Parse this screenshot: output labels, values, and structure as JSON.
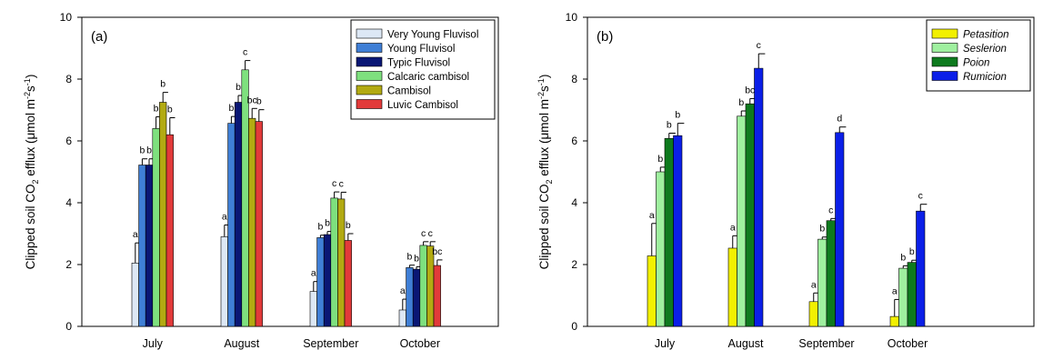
{
  "chart_data": [
    {
      "type": "bar",
      "panel_label": "(a)",
      "ylabel_prefix": "Clipped soil CO",
      "ylabel_sub": "2",
      "ylabel_mid": " efflux (μmol m",
      "ylabel_sup1": "-2",
      "ylabel_s": "s",
      "ylabel_sup2": "-1",
      "ylabel_end": ")",
      "ylim": [
        0,
        10
      ],
      "yticks": [
        "0",
        "2",
        "4",
        "6",
        "8",
        "10"
      ],
      "categories": [
        "July",
        "August",
        "September",
        "October"
      ],
      "legend_position": "top-right",
      "series": [
        {
          "name": "Very Young Fluvisol",
          "color": "#dde8f5",
          "italic": false,
          "values": [
            2.05,
            2.9,
            1.13,
            0.53
          ],
          "errors": [
            0.65,
            0.38,
            0.32,
            0.35
          ],
          "letters": [
            "a",
            "a",
            "a",
            "a"
          ]
        },
        {
          "name": "Young Fluvisol",
          "color": "#3f7fd6",
          "italic": false,
          "values": [
            5.22,
            6.57,
            2.87,
            1.9
          ],
          "errors": [
            0.2,
            0.22,
            0.08,
            0.08
          ],
          "letters": [
            "b",
            "b",
            "b",
            "b"
          ]
        },
        {
          "name": "Typic Fluvisol",
          "color": "#0a1775",
          "italic": false,
          "values": [
            5.22,
            7.25,
            2.97,
            1.85
          ],
          "errors": [
            0.2,
            0.22,
            0.1,
            0.08
          ],
          "letters": [
            "b",
            "b",
            "b",
            "b"
          ]
        },
        {
          "name": "Calcaric cambisol",
          "color": "#7ee07e",
          "italic": false,
          "values": [
            6.4,
            8.3,
            4.15,
            2.62
          ],
          "errors": [
            0.38,
            0.3,
            0.2,
            0.12
          ],
          "letters": [
            "b",
            "c",
            "c",
            "c"
          ]
        },
        {
          "name": "Cambisol",
          "color": "#b2aa12",
          "italic": false,
          "values": [
            7.25,
            6.73,
            4.12,
            2.6
          ],
          "errors": [
            0.32,
            0.32,
            0.22,
            0.14
          ],
          "letters": [
            "b",
            "bc",
            "c",
            "c"
          ]
        },
        {
          "name": "Luvic Cambisol",
          "color": "#e23a3a",
          "italic": false,
          "values": [
            6.2,
            6.63,
            2.78,
            1.97
          ],
          "errors": [
            0.55,
            0.38,
            0.22,
            0.18
          ],
          "letters": [
            "b",
            "b",
            "b",
            "bc"
          ]
        }
      ]
    },
    {
      "type": "bar",
      "panel_label": "(b)",
      "ylabel_prefix": "Clipped soil CO",
      "ylabel_sub": "2",
      "ylabel_mid": " efflux (μmol m",
      "ylabel_sup1": "-2",
      "ylabel_s": "s",
      "ylabel_sup2": "-1",
      "ylabel_end": ")",
      "ylim": [
        0,
        10
      ],
      "yticks": [
        "0",
        "2",
        "4",
        "6",
        "8",
        "10"
      ],
      "categories": [
        "July",
        "August",
        "September",
        "October"
      ],
      "legend_position": "top-right",
      "series": [
        {
          "name": "Petasition",
          "color": "#f2f000",
          "italic": true,
          "values": [
            2.28,
            2.53,
            0.8,
            0.32
          ],
          "errors": [
            1.05,
            0.4,
            0.28,
            0.55
          ],
          "letters": [
            "a",
            "a",
            "a",
            "a"
          ]
        },
        {
          "name": "Seslerion",
          "color": "#9ff09f",
          "italic": true,
          "values": [
            5.0,
            6.8,
            2.82,
            1.88
          ],
          "errors": [
            0.15,
            0.17,
            0.07,
            0.08
          ],
          "letters": [
            "b",
            "b",
            "b",
            "b"
          ]
        },
        {
          "name": "Poion",
          "color": "#0e7a1e",
          "italic": true,
          "values": [
            6.08,
            7.2,
            3.42,
            2.07
          ],
          "errors": [
            0.17,
            0.17,
            0.07,
            0.07
          ],
          "letters": [
            "b",
            "bc",
            "c",
            "b"
          ]
        },
        {
          "name": "Rumicion",
          "color": "#0b1fe8",
          "italic": true,
          "values": [
            6.17,
            8.35,
            6.27,
            3.73
          ],
          "errors": [
            0.4,
            0.47,
            0.18,
            0.22
          ],
          "letters": [
            "b",
            "c",
            "d",
            "c"
          ]
        }
      ]
    }
  ]
}
